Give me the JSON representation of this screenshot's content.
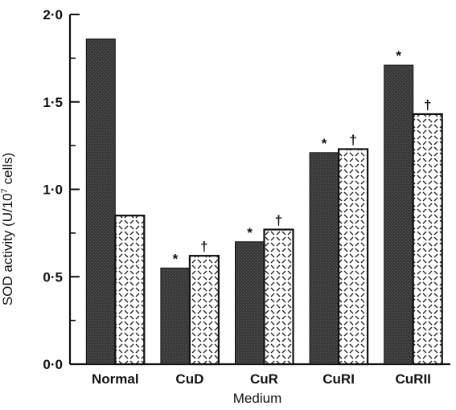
{
  "chart_data": {
    "type": "bar",
    "xlabel": "Medium",
    "ylabel": "SOD activity (U/10",
    "ylabel_sup": "7",
    "ylabel_tail": " cells)",
    "ylim": [
      0,
      2.0
    ],
    "yticks": [
      {
        "value": 0.0,
        "label": "0·0"
      },
      {
        "value": 0.5,
        "label": "0·5"
      },
      {
        "value": 1.0,
        "label": "1·0"
      },
      {
        "value": 1.5,
        "label": "1·5"
      },
      {
        "value": 2.0,
        "label": "2·0"
      }
    ],
    "categories": [
      "Normal",
      "CuD",
      "CuR",
      "CuRI",
      "CuRII"
    ],
    "series": [
      {
        "values": [
          1.86,
          0.55,
          0.7,
          1.21,
          1.71
        ],
        "markers": [
          "",
          "*",
          "*",
          "*",
          "*"
        ],
        "fill": "#3a3a3a"
      },
      {
        "values": [
          0.85,
          0.62,
          0.77,
          1.23,
          1.43
        ],
        "markers": [
          "",
          "†",
          "†",
          "†",
          "†"
        ],
        "fill": "#ffffff"
      }
    ]
  }
}
